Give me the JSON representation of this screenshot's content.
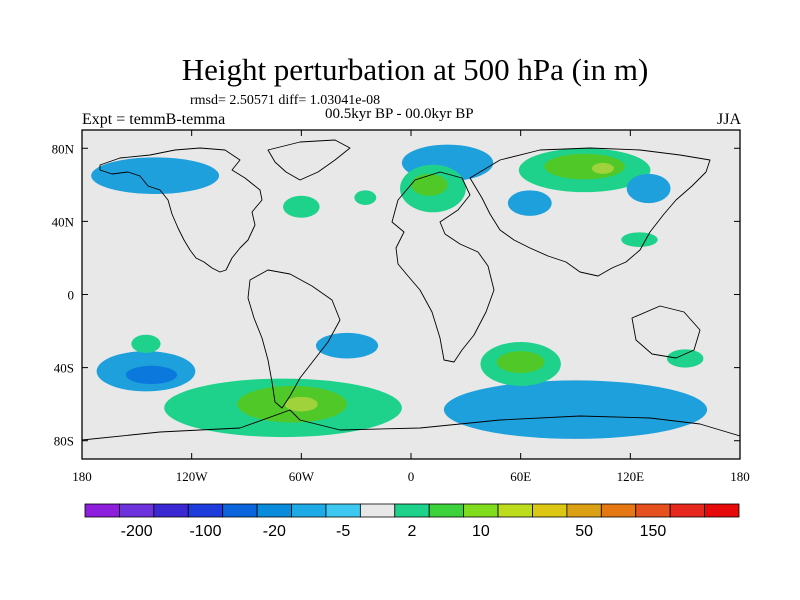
{
  "header": {
    "title": "Height perturbation at 500 hPa (in m)",
    "stats": "rmsd= 2.50571 diff= 1.03041e-08",
    "period": "00.5kyr BP - 00.0kyr BP",
    "experiment": "Expt = temmB-temma",
    "season": "JJA"
  },
  "map": {
    "projection": "cylindrical-equidistant",
    "lon_range": [
      -180,
      180
    ],
    "lat_range": [
      -90,
      90
    ],
    "background_color": "#e8e8e8",
    "lon_ticks": [
      {
        "value": -180,
        "label": "180"
      },
      {
        "value": -120,
        "label": "120W"
      },
      {
        "value": -60,
        "label": "60W"
      },
      {
        "value": 0,
        "label": "0"
      },
      {
        "value": 60,
        "label": "60E"
      },
      {
        "value": 120,
        "label": "120E"
      },
      {
        "value": 180,
        "label": "180"
      }
    ],
    "lat_ticks": [
      {
        "value": 80,
        "label": "80N"
      },
      {
        "value": 40,
        "label": "40N"
      },
      {
        "value": 0,
        "label": "0"
      },
      {
        "value": -40,
        "label": "40S"
      },
      {
        "value": -80,
        "label": "80S"
      }
    ],
    "contour_regions": [
      {
        "level": "-5",
        "color": "#1ea0dc",
        "center": [
          -145,
          -42
        ],
        "radius": [
          27,
          11
        ]
      },
      {
        "level": "-20",
        "color": "#0a78dc",
        "center": [
          -142,
          -44
        ],
        "radius": [
          14,
          5
        ]
      },
      {
        "level": "-5",
        "color": "#1ea0dc",
        "center": [
          -35,
          -28
        ],
        "radius": [
          17,
          7
        ]
      },
      {
        "level": "-5",
        "color": "#1ea0dc",
        "center": [
          90,
          -63
        ],
        "radius": [
          72,
          16
        ]
      },
      {
        "level": "-5",
        "color": "#1ea0dc",
        "center": [
          20,
          72
        ],
        "radius": [
          25,
          10
        ]
      },
      {
        "level": "-5",
        "color": "#1ea0dc",
        "center": [
          65,
          50
        ],
        "radius": [
          12,
          7
        ]
      },
      {
        "level": "-5",
        "color": "#1ea0dc",
        "center": [
          130,
          58
        ],
        "radius": [
          12,
          8
        ]
      },
      {
        "level": "-5",
        "color": "#1ea0dc",
        "center": [
          -140,
          65
        ],
        "radius": [
          35,
          10
        ]
      },
      {
        "level": "10",
        "color": "#50c828",
        "center": [
          -65,
          -60
        ],
        "radius": [
          30,
          10
        ]
      },
      {
        "level": "10",
        "color": "#50c828",
        "center": [
          60,
          -37
        ],
        "radius": [
          13,
          6
        ]
      },
      {
        "level": "10",
        "color": "#50c828",
        "center": [
          95,
          70
        ],
        "radius": [
          22,
          7
        ]
      },
      {
        "level": "10",
        "color": "#50c828",
        "center": [
          10,
          60
        ],
        "radius": [
          10,
          6
        ]
      },
      {
        "level": "20",
        "color": "#a0d23c",
        "center": [
          -60,
          -60
        ],
        "radius": [
          9,
          4
        ]
      },
      {
        "level": "20",
        "color": "#a0d23c",
        "center": [
          105,
          69
        ],
        "radius": [
          6,
          3
        ]
      },
      {
        "level": "2",
        "color": "#1ed28c",
        "center": [
          -70,
          -62
        ],
        "radius": [
          65,
          16
        ]
      },
      {
        "level": "2",
        "color": "#1ed28c",
        "center": [
          60,
          -38
        ],
        "radius": [
          22,
          12
        ]
      },
      {
        "level": "2",
        "color": "#1ed28c",
        "center": [
          95,
          68
        ],
        "radius": [
          36,
          12
        ]
      },
      {
        "level": "2",
        "color": "#1ed28c",
        "center": [
          12,
          58
        ],
        "radius": [
          18,
          13
        ]
      },
      {
        "level": "2",
        "color": "#1ed28c",
        "center": [
          -145,
          -27
        ],
        "radius": [
          8,
          5
        ]
      },
      {
        "level": "2",
        "color": "#1ed28c",
        "center": [
          -60,
          48
        ],
        "radius": [
          10,
          6
        ]
      },
      {
        "level": "2",
        "color": "#1ed28c",
        "center": [
          -25,
          53
        ],
        "radius": [
          6,
          4
        ]
      },
      {
        "level": "2",
        "color": "#1ed28c",
        "center": [
          150,
          -35
        ],
        "radius": [
          10,
          5
        ]
      },
      {
        "level": "2",
        "color": "#1ed28c",
        "center": [
          125,
          30
        ],
        "radius": [
          10,
          4
        ]
      }
    ]
  },
  "colorbar": {
    "colors": [
      "#8c1edc",
      "#6e32dc",
      "#3c28d2",
      "#1e3cdc",
      "#0a64dc",
      "#0a8cdc",
      "#1eaae6",
      "#3cc8f0",
      "#e8e8e8",
      "#1ed28c",
      "#3cd23c",
      "#82dc1e",
      "#bedc1e",
      "#dcc814",
      "#dca014",
      "#e67814",
      "#e6501e",
      "#e6281e",
      "#e60a0a"
    ],
    "labels": [
      {
        "text": "-200",
        "index": 1
      },
      {
        "text": "-100",
        "index": 3
      },
      {
        "text": "-20",
        "index": 5
      },
      {
        "text": "-5",
        "index": 7
      },
      {
        "text": "2",
        "index": 9
      },
      {
        "text": "10",
        "index": 11
      },
      {
        "text": "50",
        "index": 14
      },
      {
        "text": "150",
        "index": 16
      }
    ]
  }
}
